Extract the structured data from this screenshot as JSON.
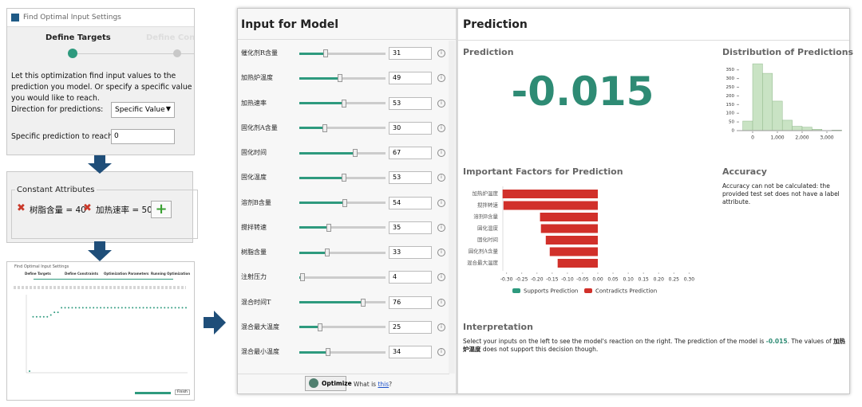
{
  "setup_window": {
    "title": "Find Optimal Input Settings",
    "steps": [
      "Define Targets",
      "Define Constr"
    ],
    "description": "Let this optimization find input values to the prediction you model. Or specify a specific value you would like to reach.",
    "direction_label": "Direction for predictions:",
    "direction_value": "Specific Value",
    "target_label": "Specific prediction to reach:",
    "target_value": "0"
  },
  "constant_attributes": {
    "title": "Constant Attributes",
    "items": [
      "树脂含量 = 40",
      "加热速率 = 50"
    ]
  },
  "optimization_window": {
    "title": "Find Optimal Input Settings",
    "steps": [
      "Define Targets",
      "Define Constraints",
      "Optimization Parameters",
      "Running Optimization"
    ],
    "finish": "Finish"
  },
  "input_panel": {
    "title": "Input for Model",
    "inputs": [
      {
        "label": "催化剂R含量",
        "value": 31
      },
      {
        "label": "加热炉温度",
        "value": 49
      },
      {
        "label": "加热速率",
        "value": 53
      },
      {
        "label": "固化剂A含量",
        "value": 30
      },
      {
        "label": "固化时间",
        "value": 67
      },
      {
        "label": "固化温度",
        "value": 53
      },
      {
        "label": "溶剂B含量",
        "value": 54
      },
      {
        "label": "搅拌转速",
        "value": 35
      },
      {
        "label": "树脂含量",
        "value": 33
      },
      {
        "label": "注射压力",
        "value": 4
      },
      {
        "label": "混合时间T",
        "value": 76
      },
      {
        "label": "混合最大温度",
        "value": 25
      },
      {
        "label": "混合最小温度",
        "value": 34
      }
    ],
    "optimize": "Optimize",
    "help_prefix": "What is ",
    "help_link": "this",
    "help_suffix": "?"
  },
  "prediction_panel": {
    "title": "Prediction",
    "prediction_label": "Prediction",
    "prediction_value": -0.015,
    "accuracy_title": "Accuracy",
    "accuracy_text": "Accuracy can not be calculated: the provided test set does not have a label attribute.",
    "interpretation_title": "Interpretation",
    "interpretation_parts": [
      "Select your inputs on the left to see the model's reaction on the right. The prediction of the model is ",
      "-0.015",
      ". The values of ",
      "加热炉温度",
      " does not support this decision though."
    ]
  },
  "chart_data": [
    {
      "type": "histogram",
      "title": "Distribution of Predictions",
      "bins": [
        -400,
        0,
        400,
        800,
        1200,
        1600,
        2000,
        2400,
        2800,
        3200,
        3600
      ],
      "values": [
        55,
        385,
        330,
        170,
        60,
        25,
        20,
        8,
        0,
        3
      ],
      "color": "#c9e3c4",
      "xlim": [
        -400,
        3600
      ],
      "xticks": [
        0,
        {
          "value": 1000,
          "label": "1,000"
        },
        {
          "value": 2000,
          "label": "2,000"
        },
        {
          "value": 3000,
          "label": "3,000"
        }
      ],
      "ylim": [
        0,
        390
      ],
      "yticks": [
        0,
        50,
        100,
        150,
        200,
        250,
        300,
        350
      ]
    },
    {
      "type": "hbar",
      "title": "Important Factors for Prediction",
      "categories": [
        "加热炉温度",
        "搅拌转速",
        "溶剂B含量",
        "固化温度",
        "固化时间",
        "固化剂A含量",
        "混合最大温度"
      ],
      "series": [
        {
          "name": "Supports Prediction",
          "color": "#2e9a7e",
          "values": [
            null,
            null,
            null,
            null,
            null,
            null,
            null
          ]
        },
        {
          "name": "Contradicts Prediction",
          "color": "#d1302a",
          "values": [
            -0.313,
            -0.31,
            -0.19,
            -0.187,
            -0.171,
            -0.158,
            -0.132
          ]
        }
      ],
      "xlim": [
        -0.32,
        0.32
      ],
      "xticks": [
        {
          "value": -0.3,
          "label": "-0.30"
        },
        -0.25,
        {
          "value": -0.2,
          "label": "-0.20"
        },
        -0.15,
        {
          "value": -0.1,
          "label": "-0.10"
        },
        -0.05,
        {
          "value": 0,
          "label": "0.00"
        },
        0.05,
        {
          "value": 0.1,
          "label": "0.10"
        },
        0.15,
        {
          "value": 0.2,
          "label": "0.20"
        },
        0.25,
        {
          "value": 0.3,
          "label": "0.30"
        }
      ]
    },
    {
      "type": "scatter",
      "color": "#2e9a7e",
      "ylim": [
        0,
        8
      ],
      "values": [
        0,
        6,
        6,
        6,
        6,
        6,
        6.2,
        6.5,
        6.5,
        7,
        7,
        7,
        7,
        7,
        7,
        7,
        7,
        7,
        7,
        7,
        7,
        7,
        7,
        7,
        7,
        7,
        7,
        7,
        7,
        7,
        7,
        7,
        7,
        7,
        7,
        7,
        7,
        7,
        7,
        7,
        7,
        7,
        7,
        7,
        7
      ]
    }
  ]
}
